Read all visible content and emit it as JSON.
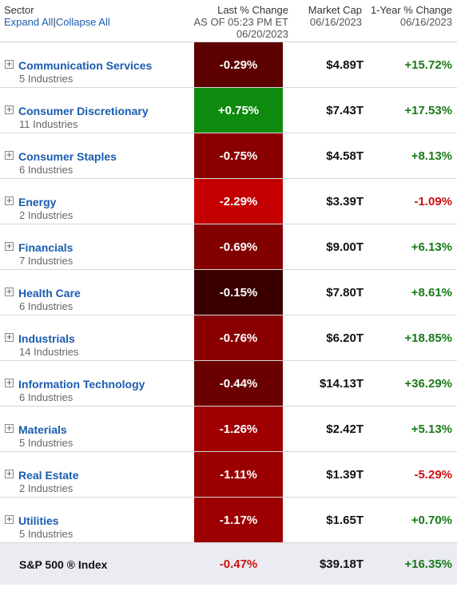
{
  "header": {
    "sector_label": "Sector",
    "expand_all": "Expand All",
    "separator": "|",
    "collapse_all": "Collapse All",
    "pct_title": "Last % Change",
    "pct_sub1": "AS OF 05:23 PM ET",
    "pct_sub2": "06/20/2023",
    "cap_title": "Market Cap",
    "cap_sub": "06/16/2023",
    "yr_title": "1-Year % Change",
    "yr_sub": "06/16/2023"
  },
  "colors": {
    "positive_text": "#1a7a1a",
    "negative_text": "#cc1111",
    "link": "#1a5cb0"
  },
  "rows": [
    {
      "name": "Communication Services",
      "industries": "5 Industries",
      "pct": "-0.29%",
      "pct_color": "#5c0000",
      "cap": "$4.89T",
      "yr": "+15.72%",
      "yr_sign": "pos"
    },
    {
      "name": "Consumer Discretionary",
      "industries": "11 Industries",
      "pct": "+0.75%",
      "pct_color": "#0e8a0e",
      "cap": "$7.43T",
      "yr": "+17.53%",
      "yr_sign": "pos"
    },
    {
      "name": "Consumer Staples",
      "industries": "6 Industries",
      "pct": "-0.75%",
      "pct_color": "#8a0000",
      "cap": "$4.58T",
      "yr": "+8.13%",
      "yr_sign": "pos"
    },
    {
      "name": "Energy",
      "industries": "2 Industries",
      "pct": "-2.29%",
      "pct_color": "#c40000",
      "cap": "$3.39T",
      "yr": "-1.09%",
      "yr_sign": "neg"
    },
    {
      "name": "Financials",
      "industries": "7 Industries",
      "pct": "-0.69%",
      "pct_color": "#820000",
      "cap": "$9.00T",
      "yr": "+6.13%",
      "yr_sign": "pos"
    },
    {
      "name": "Health Care",
      "industries": "6 Industries",
      "pct": "-0.15%",
      "pct_color": "#3a0000",
      "cap": "$7.80T",
      "yr": "+8.61%",
      "yr_sign": "pos"
    },
    {
      "name": "Industrials",
      "industries": "14 Industries",
      "pct": "-0.76%",
      "pct_color": "#8a0000",
      "cap": "$6.20T",
      "yr": "+18.85%",
      "yr_sign": "pos"
    },
    {
      "name": "Information Technology",
      "industries": "6 Industries",
      "pct": "-0.44%",
      "pct_color": "#6a0000",
      "cap": "$14.13T",
      "yr": "+36.29%",
      "yr_sign": "pos"
    },
    {
      "name": "Materials",
      "industries": "5 Industries",
      "pct": "-1.26%",
      "pct_color": "#a00000",
      "cap": "$2.42T",
      "yr": "+5.13%",
      "yr_sign": "pos"
    },
    {
      "name": "Real Estate",
      "industries": "2 Industries",
      "pct": "-1.11%",
      "pct_color": "#9a0000",
      "cap": "$1.39T",
      "yr": "-5.29%",
      "yr_sign": "neg"
    },
    {
      "name": "Utilities",
      "industries": "5 Industries",
      "pct": "-1.17%",
      "pct_color": "#9c0000",
      "cap": "$1.65T",
      "yr": "+0.70%",
      "yr_sign": "pos"
    }
  ],
  "index": {
    "name": "S&P 500 ® Index",
    "pct": "-0.47%",
    "cap": "$39.18T",
    "yr": "+16.35%"
  },
  "icons": {
    "expand": "plus-box-icon"
  }
}
